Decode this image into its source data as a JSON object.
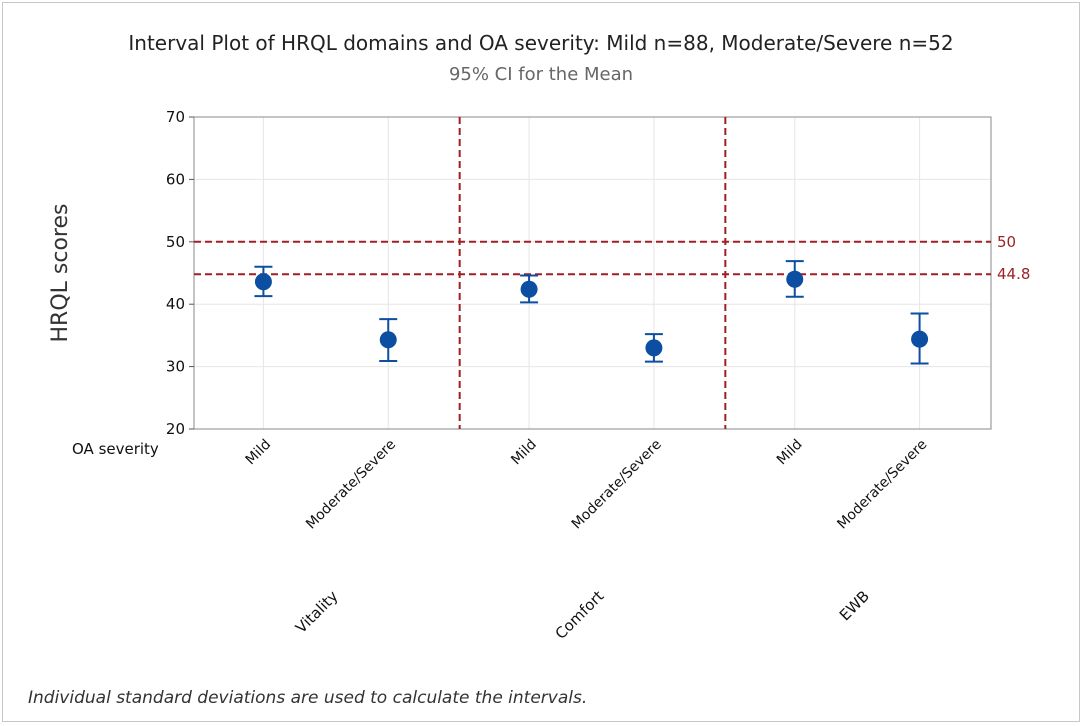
{
  "chart_data": {
    "type": "interval",
    "title": "Interval Plot of HRQL domains and OA severity: Mild n=88, Moderate/Severe n=52",
    "subtitle": "95% CI for the Mean",
    "ylabel": "HRQL scores",
    "ylim": [
      20,
      70
    ],
    "yticks": [
      20,
      30,
      40,
      50,
      60,
      70
    ],
    "x_axis_label": "OA severity",
    "groups": [
      "Vitality",
      "Comfort",
      "EWB"
    ],
    "categories": [
      "Mild",
      "Moderate/Severe"
    ],
    "series": [
      {
        "group": "Vitality",
        "category": "Mild",
        "mean": 43.6,
        "lower": 41.3,
        "upper": 46.0
      },
      {
        "group": "Vitality",
        "category": "Moderate/Severe",
        "mean": 34.3,
        "lower": 30.9,
        "upper": 37.6
      },
      {
        "group": "Comfort",
        "category": "Mild",
        "mean": 42.4,
        "lower": 40.3,
        "upper": 44.6
      },
      {
        "group": "Comfort",
        "category": "Moderate/Severe",
        "mean": 33.0,
        "lower": 30.8,
        "upper": 35.2
      },
      {
        "group": "EWB",
        "category": "Mild",
        "mean": 44.0,
        "lower": 41.2,
        "upper": 46.9
      },
      {
        "group": "EWB",
        "category": "Moderate/Severe",
        "mean": 34.4,
        "lower": 30.5,
        "upper": 38.5
      }
    ],
    "reference_lines": [
      {
        "value": 50,
        "label": "50"
      },
      {
        "value": 44.8,
        "label": "44.8"
      }
    ],
    "grid": true,
    "footnote": "Individual standard deviations are used to calculate the intervals.",
    "colors": {
      "marker": "#0b4ea2",
      "reference": "#a01e24",
      "grid": "#e6e6e6"
    }
  }
}
